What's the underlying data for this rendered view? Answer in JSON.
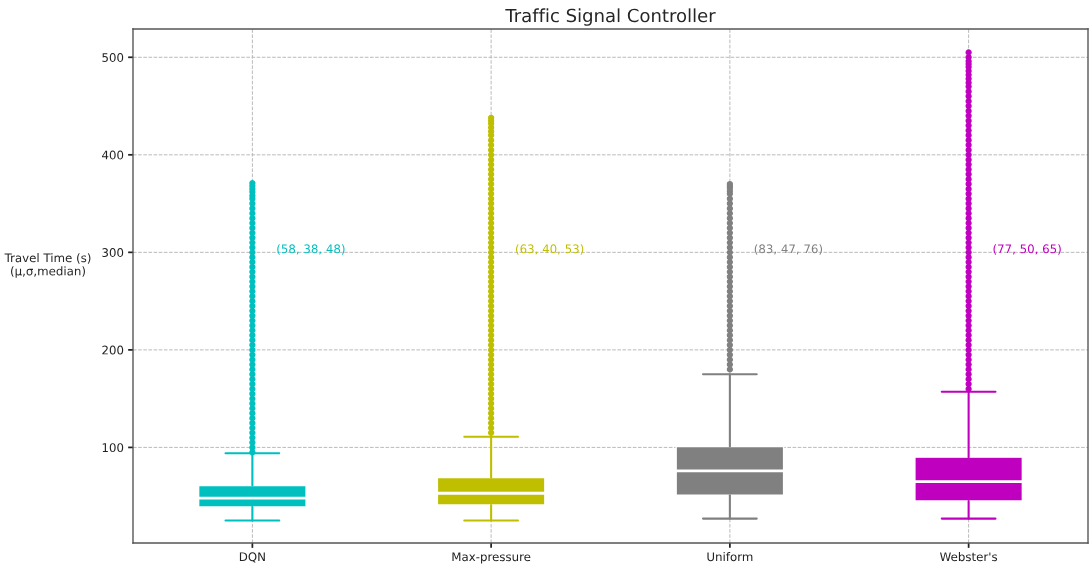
{
  "chart_data": {
    "type": "box",
    "title": "Traffic Signal Controller",
    "ylabel": "Travel Time (s)\n(μ,σ,median)",
    "categories": [
      "DQN",
      "Max-pressure",
      "Uniform",
      "Webster's"
    ],
    "colors": [
      "#00bfbf",
      "#bfbf00",
      "#808080",
      "#bf00bf"
    ],
    "boxes": [
      {
        "low": 25,
        "q1": 39,
        "median": 48,
        "q3": 61,
        "high": 94,
        "outliers": [
          95,
          100,
          105,
          110,
          115,
          120,
          125,
          130,
          135,
          140,
          145,
          150,
          155,
          160,
          165,
          170,
          175,
          180,
          185,
          190,
          195,
          200,
          205,
          210,
          215,
          220,
          225,
          230,
          235,
          240,
          245,
          250,
          255,
          260,
          265,
          270,
          275,
          280,
          285,
          290,
          295,
          300,
          305,
          310,
          315,
          320,
          325,
          330,
          335,
          340,
          345,
          350,
          355,
          358,
          362,
          365,
          368,
          371
        ]
      },
      {
        "low": 25,
        "q1": 41,
        "median": 53,
        "q3": 69,
        "high": 111,
        "outliers": [
          115,
          120,
          125,
          130,
          135,
          140,
          145,
          150,
          155,
          160,
          165,
          170,
          175,
          180,
          185,
          190,
          195,
          200,
          205,
          210,
          215,
          220,
          225,
          230,
          235,
          240,
          245,
          250,
          255,
          260,
          265,
          270,
          275,
          280,
          285,
          290,
          295,
          300,
          305,
          310,
          315,
          320,
          325,
          330,
          335,
          340,
          345,
          350,
          355,
          360,
          365,
          370,
          375,
          380,
          385,
          390,
          395,
          400,
          405,
          410,
          415,
          420,
          424,
          428,
          432,
          435,
          438
        ]
      },
      {
        "low": 27,
        "q1": 51,
        "median": 76,
        "q3": 101,
        "high": 175,
        "outliers": [
          180,
          185,
          190,
          195,
          200,
          205,
          210,
          215,
          220,
          225,
          230,
          235,
          240,
          245,
          250,
          255,
          260,
          265,
          270,
          275,
          280,
          285,
          290,
          295,
          300,
          305,
          310,
          315,
          320,
          325,
          330,
          335,
          340,
          345,
          350,
          355,
          360,
          363,
          366,
          368,
          370
        ]
      },
      {
        "low": 27,
        "q1": 45,
        "median": 65,
        "q3": 90,
        "high": 157,
        "outliers": [
          160,
          165,
          170,
          175,
          180,
          185,
          190,
          195,
          200,
          205,
          210,
          215,
          220,
          225,
          230,
          235,
          240,
          245,
          250,
          255,
          260,
          265,
          270,
          275,
          280,
          285,
          290,
          295,
          300,
          305,
          310,
          315,
          320,
          325,
          330,
          335,
          340,
          345,
          350,
          355,
          360,
          365,
          370,
          375,
          380,
          385,
          390,
          395,
          400,
          405,
          410,
          415,
          420,
          425,
          430,
          435,
          440,
          445,
          450,
          455,
          460,
          465,
          470,
          474,
          478,
          482,
          486,
          490,
          493,
          496,
          500,
          505
        ]
      }
    ],
    "annotations": [
      "(58, 38, 48)",
      "(63, 40, 53)",
      "(83, 47, 76)",
      "(77, 50, 65)"
    ],
    "ylim": [
      2,
      529
    ],
    "yticks": [
      100,
      200,
      300,
      400,
      500
    ],
    "grid": true
  }
}
